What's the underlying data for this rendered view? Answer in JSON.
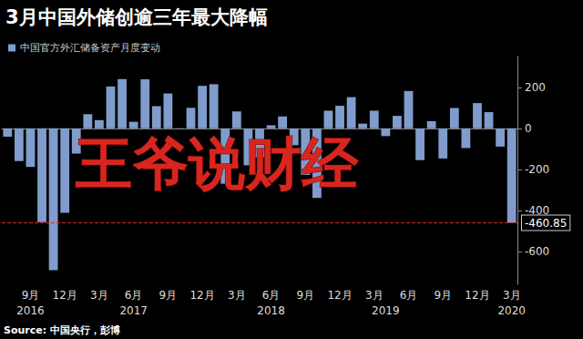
{
  "chart_data": {
    "type": "bar",
    "title": "3月中国外储创逾三年最大降幅",
    "source": "Source: 中国央行，彭博",
    "annotations": [
      {
        "text": "王爷说财经"
      }
    ],
    "series": [
      {
        "name": "中国官方外汇储备资产月度变动",
        "color": "#7f9ccc",
        "values": [
          -41,
          -159,
          -188,
          -457,
          -691,
          -411,
          -123,
          69,
          40,
          204,
          240,
          32,
          239,
          108,
          170,
          1,
          100,
          207,
          215,
          -270,
          82,
          -180,
          -142,
          15,
          58,
          -82,
          -227,
          -339,
          86,
          110,
          152,
          23,
          86,
          -38,
          61,
          182,
          -155,
          35,
          -147,
          99,
          -96,
          123,
          79,
          -89,
          -460.85
        ]
      }
    ],
    "categories": [
      null,
      null,
      "9月",
      null,
      null,
      "12月",
      null,
      null,
      "3月",
      null,
      null,
      "6月",
      null,
      null,
      "9月",
      null,
      null,
      "12月",
      null,
      null,
      "3月",
      null,
      null,
      "6月",
      null,
      null,
      "9月",
      null,
      null,
      "12月",
      null,
      null,
      "3月",
      null,
      null,
      "6月",
      null,
      null,
      "9月",
      null,
      null,
      "12月",
      null,
      null,
      "3月"
    ],
    "category_groups": [
      null,
      null,
      "2016",
      null,
      null,
      null,
      null,
      null,
      null,
      null,
      null,
      "2017",
      null,
      null,
      null,
      null,
      null,
      null,
      null,
      null,
      null,
      null,
      null,
      "2018",
      null,
      null,
      null,
      null,
      null,
      null,
      null,
      null,
      null,
      "2019",
      null,
      null,
      null,
      null,
      null,
      null,
      null,
      null,
      null,
      null,
      "2020"
    ],
    "reference_line": {
      "value": -460.85,
      "label": "-460.85"
    },
    "ylim": [
      -760,
      350
    ],
    "yticks": [
      -600,
      -400,
      -200,
      0,
      200
    ],
    "grid": false,
    "legend": "top-left"
  }
}
